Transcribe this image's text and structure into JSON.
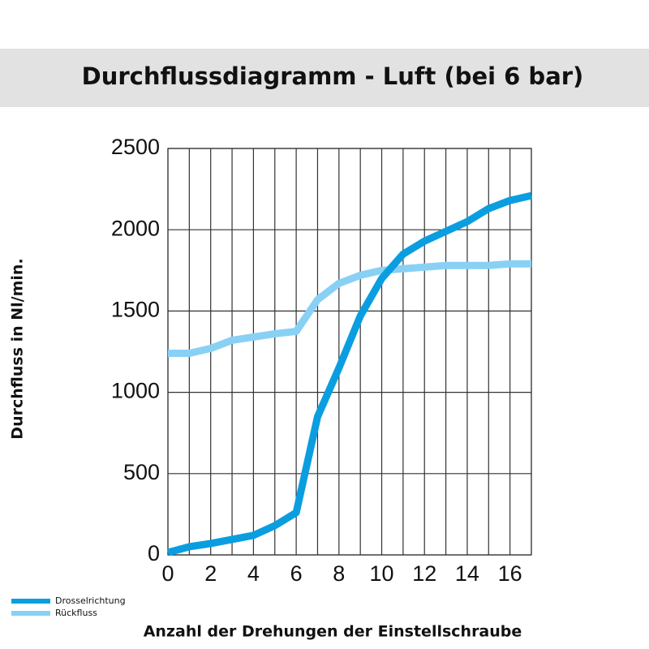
{
  "chart_data": {
    "type": "line",
    "title": "Durchflussdiagramm - Luft (bei 6 bar)",
    "x_label": "Anzahl der Drehungen der Einstellschraube",
    "y_label": "Durchfluss in Nl/min.",
    "x": [
      0,
      1,
      2,
      3,
      4,
      5,
      6,
      7,
      8,
      9,
      10,
      11,
      12,
      13,
      14,
      15,
      16,
      17
    ],
    "series": [
      {
        "name": "Drosselrichtung",
        "color": "#0a9ee0",
        "values": [
          15,
          50,
          70,
          95,
          120,
          180,
          260,
          850,
          1150,
          1470,
          1700,
          1850,
          1930,
          1990,
          2050,
          2130,
          2180,
          2210
        ]
      },
      {
        "name": "Rückfluss",
        "color": "#88d1f5",
        "values": [
          1240,
          1240,
          1270,
          1320,
          1340,
          1360,
          1375,
          1570,
          1670,
          1720,
          1750,
          1760,
          1770,
          1780,
          1780,
          1780,
          1790,
          1790
        ]
      }
    ],
    "xlim": [
      0,
      17
    ],
    "xticks": [
      0,
      2,
      4,
      6,
      8,
      10,
      12,
      14,
      16
    ],
    "x_minor_ticks": [
      1,
      3,
      5,
      7,
      9,
      11,
      13,
      15,
      17
    ],
    "ylim": [
      0,
      2500
    ],
    "yticks": [
      0,
      500,
      1000,
      1500,
      2000,
      2500
    ],
    "grid": true
  }
}
